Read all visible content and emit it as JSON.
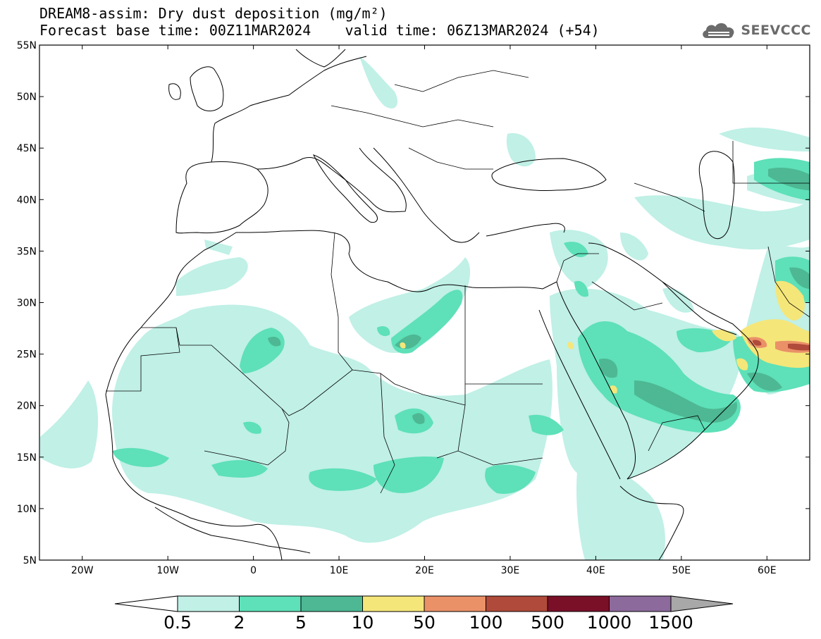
{
  "title": {
    "line1": "DREAM8-assim: Dry dust deposition (mg/m²)",
    "line2": "Forecast base time: 00Z11MAR2024    valid time: 06Z13MAR2024 (+54)"
  },
  "logo": {
    "text": "SEEVCCC",
    "icon": "cloud-logo-icon"
  },
  "map": {
    "lon_range": [
      -25,
      65
    ],
    "lat_range": [
      5,
      55
    ],
    "x_ticks": [
      {
        "lon": -20,
        "label": "20W"
      },
      {
        "lon": -10,
        "label": "10W"
      },
      {
        "lon": 0,
        "label": "0"
      },
      {
        "lon": 10,
        "label": "10E"
      },
      {
        "lon": 20,
        "label": "20E"
      },
      {
        "lon": 30,
        "label": "30E"
      },
      {
        "lon": 40,
        "label": "40E"
      },
      {
        "lon": 50,
        "label": "50E"
      },
      {
        "lon": 60,
        "label": "60E"
      }
    ],
    "y_ticks": [
      {
        "lat": 5,
        "label": "5N"
      },
      {
        "lat": 10,
        "label": "10N"
      },
      {
        "lat": 15,
        "label": "15N"
      },
      {
        "lat": 20,
        "label": "20N"
      },
      {
        "lat": 25,
        "label": "25N"
      },
      {
        "lat": 30,
        "label": "30N"
      },
      {
        "lat": 35,
        "label": "35N"
      },
      {
        "lat": 40,
        "label": "40N"
      },
      {
        "lat": 45,
        "label": "45N"
      },
      {
        "lat": 50,
        "label": "50N"
      },
      {
        "lat": 55,
        "label": "55N"
      }
    ]
  },
  "legend": {
    "labels": [
      "0.5",
      "2",
      "5",
      "10",
      "50",
      "100",
      "500",
      "1000",
      "1500"
    ],
    "colors": [
      "#c0f0e6",
      "#5ee0b8",
      "#4db893",
      "#f5e67a",
      "#ea9168",
      "#b04a3a",
      "#7a0f28",
      "#8c6a9c"
    ],
    "under_color": "#ffffff",
    "over_color": "#a8a8a8"
  }
}
